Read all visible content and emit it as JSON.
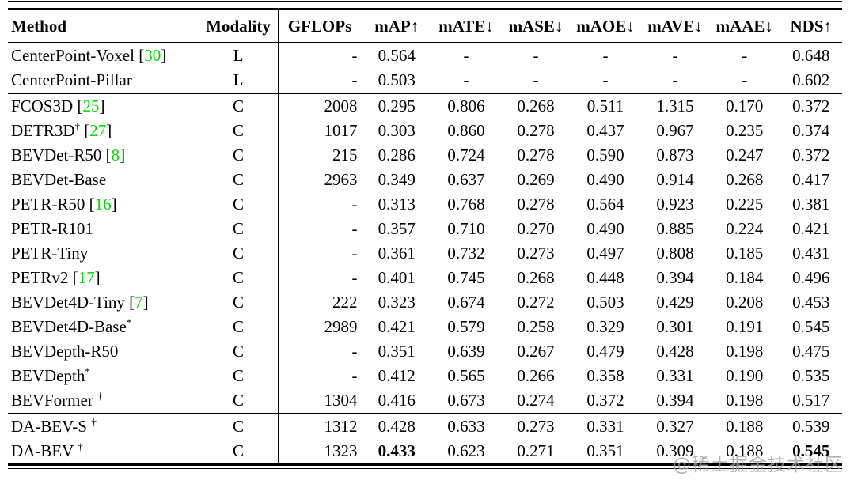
{
  "table": {
    "header": {
      "cols": [
        "Method",
        "Modality",
        "GFLOPs",
        "mAP↑",
        "mATE↓",
        "mASE↓",
        "mAOE↓",
        "mAVE↓",
        "mAAE↓",
        "NDS↑"
      ]
    },
    "groups": [
      {
        "rows": [
          {
            "method": "CenterPoint-Voxel",
            "cite": "30",
            "modality": "L",
            "gflops": "-",
            "metrics": [
              "0.564",
              "-",
              "-",
              "-",
              "-",
              "-"
            ],
            "nds": "0.648"
          },
          {
            "method": "CenterPoint-Pillar",
            "modality": "L",
            "gflops": "-",
            "metrics": [
              "0.503",
              "-",
              "-",
              "-",
              "-",
              "-"
            ],
            "nds": "0.602"
          }
        ]
      },
      {
        "rows": [
          {
            "method": "FCOS3D",
            "cite": "25",
            "modality": "C",
            "gflops": "2008",
            "metrics": [
              "0.295",
              "0.806",
              "0.268",
              "0.511",
              "1.315",
              "0.170"
            ],
            "nds": "0.372"
          },
          {
            "method": "DETR3D",
            "sup": "†",
            "cite": "27",
            "modality": "C",
            "gflops": "1017",
            "metrics": [
              "0.303",
              "0.860",
              "0.278",
              "0.437",
              "0.967",
              "0.235"
            ],
            "nds": "0.374"
          },
          {
            "method": "BEVDet-R50",
            "cite": "8",
            "modality": "C",
            "gflops": "215",
            "metrics": [
              "0.286",
              "0.724",
              "0.278",
              "0.590",
              "0.873",
              "0.247"
            ],
            "nds": "0.372"
          },
          {
            "method": "BEVDet-Base",
            "modality": "C",
            "gflops": "2963",
            "metrics": [
              "0.349",
              "0.637",
              "0.269",
              "0.490",
              "0.914",
              "0.268"
            ],
            "nds": "0.417"
          },
          {
            "method": "PETR-R50",
            "cite": "16",
            "modality": "C",
            "gflops": "-",
            "metrics": [
              "0.313",
              "0.768",
              "0.278",
              "0.564",
              "0.923",
              "0.225"
            ],
            "nds": "0.381"
          },
          {
            "method": "PETR-R101",
            "modality": "C",
            "gflops": "-",
            "metrics": [
              "0.357",
              "0.710",
              "0.270",
              "0.490",
              "0.885",
              "0.224"
            ],
            "nds": "0.421"
          },
          {
            "method": "PETR-Tiny",
            "modality": "C",
            "gflops": "-",
            "metrics": [
              "0.361",
              "0.732",
              "0.273",
              "0.497",
              "0.808",
              "0.185"
            ],
            "nds": "0.431"
          },
          {
            "method": "PETRv2",
            "cite": "17",
            "modality": "C",
            "gflops": "-",
            "metrics": [
              "0.401",
              "0.745",
              "0.268",
              "0.448",
              "0.394",
              "0.184"
            ],
            "nds": "0.496"
          },
          {
            "method": "BEVDet4D-Tiny",
            "cite": "7",
            "modality": "C",
            "gflops": "222",
            "metrics": [
              "0.323",
              "0.674",
              "0.272",
              "0.503",
              "0.429",
              "0.208"
            ],
            "nds": "0.453"
          },
          {
            "method": "BEVDet4D-Base",
            "sup": "*",
            "modality": "C",
            "gflops": "2989",
            "metrics": [
              "0.421",
              "0.579",
              "0.258",
              "0.329",
              "0.301",
              "0.191"
            ],
            "nds": "0.545"
          },
          {
            "method": "BEVDepth-R50",
            "modality": "C",
            "gflops": "-",
            "metrics": [
              "0.351",
              "0.639",
              "0.267",
              "0.479",
              "0.428",
              "0.198"
            ],
            "nds": "0.475"
          },
          {
            "method": "BEVDepth",
            "sup": "*",
            "modality": "C",
            "gflops": "-",
            "metrics": [
              "0.412",
              "0.565",
              "0.266",
              "0.358",
              "0.331",
              "0.190"
            ],
            "nds": "0.535"
          },
          {
            "method": "BEVFormer ",
            "sup": "†",
            "modality": "C",
            "gflops": "1304",
            "metrics": [
              "0.416",
              "0.673",
              "0.274",
              "0.372",
              "0.394",
              "0.198"
            ],
            "nds": "0.517"
          }
        ]
      },
      {
        "rows": [
          {
            "method": "DA-BEV-S ",
            "sup": "†",
            "modality": "C",
            "gflops": "1312",
            "metrics": [
              "0.428",
              "0.633",
              "0.273",
              "0.331",
              "0.327",
              "0.188"
            ],
            "nds": "0.539"
          },
          {
            "method": "DA-BEV ",
            "sup": "†",
            "modality": "C",
            "gflops": "1323",
            "metrics": [
              "0.433",
              "0.623",
              "0.271",
              "0.351",
              "0.309",
              "0.188"
            ],
            "nds": "0.545",
            "bold_metrics": [
              0
            ],
            "bold_nds": true
          }
        ]
      }
    ]
  },
  "watermark": {
    "text": "@稀土掘金技术社区"
  },
  "colors": {
    "cite_green": "#00dd00",
    "watermark_gray": "#a0a0a0"
  }
}
